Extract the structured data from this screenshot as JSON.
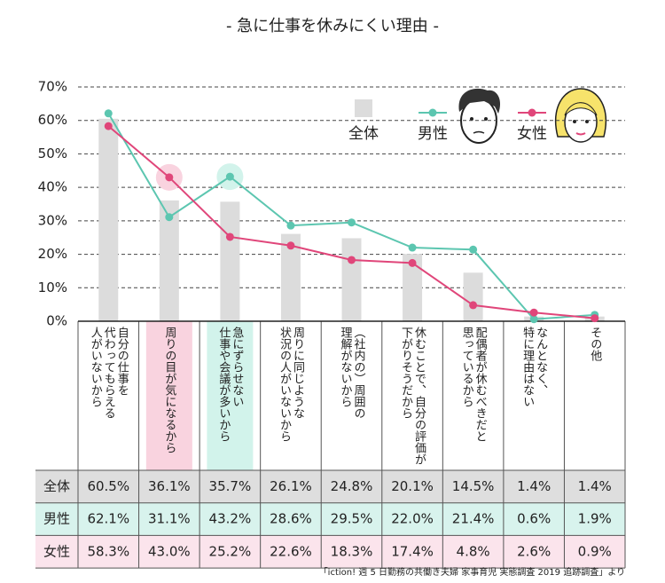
{
  "chart_data": {
    "type": "bar",
    "title": "- 急に仕事を休みにくい理由 -",
    "categories": [
      "自分の仕事を\n代わってもらえる\n人がいないから",
      "周りの目が気になるから",
      "急にずらせない\n仕事や会議が多いから",
      "周りに同じような\n状況の人がいないから",
      "（社内の）周囲の\n理解がないから",
      "休むことで、自分の評価が\n下がりそうだから",
      "配偶者が休むべきだと\n思っているから",
      "なんとなく、\n特に理由はない",
      "その他"
    ],
    "series": [
      {
        "name": "全体",
        "type": "bar",
        "color": "#dcdcdc",
        "values": [
          60.5,
          36.1,
          35.7,
          26.1,
          24.8,
          20.1,
          14.5,
          1.4,
          1.4
        ],
        "value_labels": [
          "60.5%",
          "36.1%",
          "35.7%",
          "26.1%",
          "24.8%",
          "20.1%",
          "14.5%",
          "1.4%",
          "1.4%"
        ]
      },
      {
        "name": "男性",
        "type": "line",
        "color": "#5cc6b0",
        "values": [
          62.1,
          31.1,
          43.2,
          28.6,
          29.5,
          22.0,
          21.4,
          0.6,
          1.9
        ],
        "value_labels": [
          "62.1%",
          "31.1%",
          "43.2%",
          "28.6%",
          "29.5%",
          "22.0%",
          "21.4%",
          "0.6%",
          "1.9%"
        ]
      },
      {
        "name": "女性",
        "type": "line",
        "color": "#e0467a",
        "values": [
          58.3,
          43.0,
          25.2,
          22.6,
          18.3,
          17.4,
          4.8,
          2.6,
          0.9
        ],
        "value_labels": [
          "58.3%",
          "43.0%",
          "25.2%",
          "22.6%",
          "18.3%",
          "17.4%",
          "4.8%",
          "2.6%",
          "0.9%"
        ]
      }
    ],
    "ylim": [
      0,
      70
    ],
    "yticks": [
      {
        "value": 0,
        "label": "0%"
      },
      {
        "value": 10,
        "label": "10%"
      },
      {
        "value": 20,
        "label": "20%"
      },
      {
        "value": 30,
        "label": "30%"
      },
      {
        "value": 40,
        "label": "40%"
      },
      {
        "value": 50,
        "label": "50%"
      },
      {
        "value": 60,
        "label": "60%"
      },
      {
        "value": 70,
        "label": "70%"
      }
    ],
    "grid": true,
    "source": "「iction! 週 5 日勤務の共働き夫婦 家事育児 実態調査 2019 追跡調査」より"
  }
}
